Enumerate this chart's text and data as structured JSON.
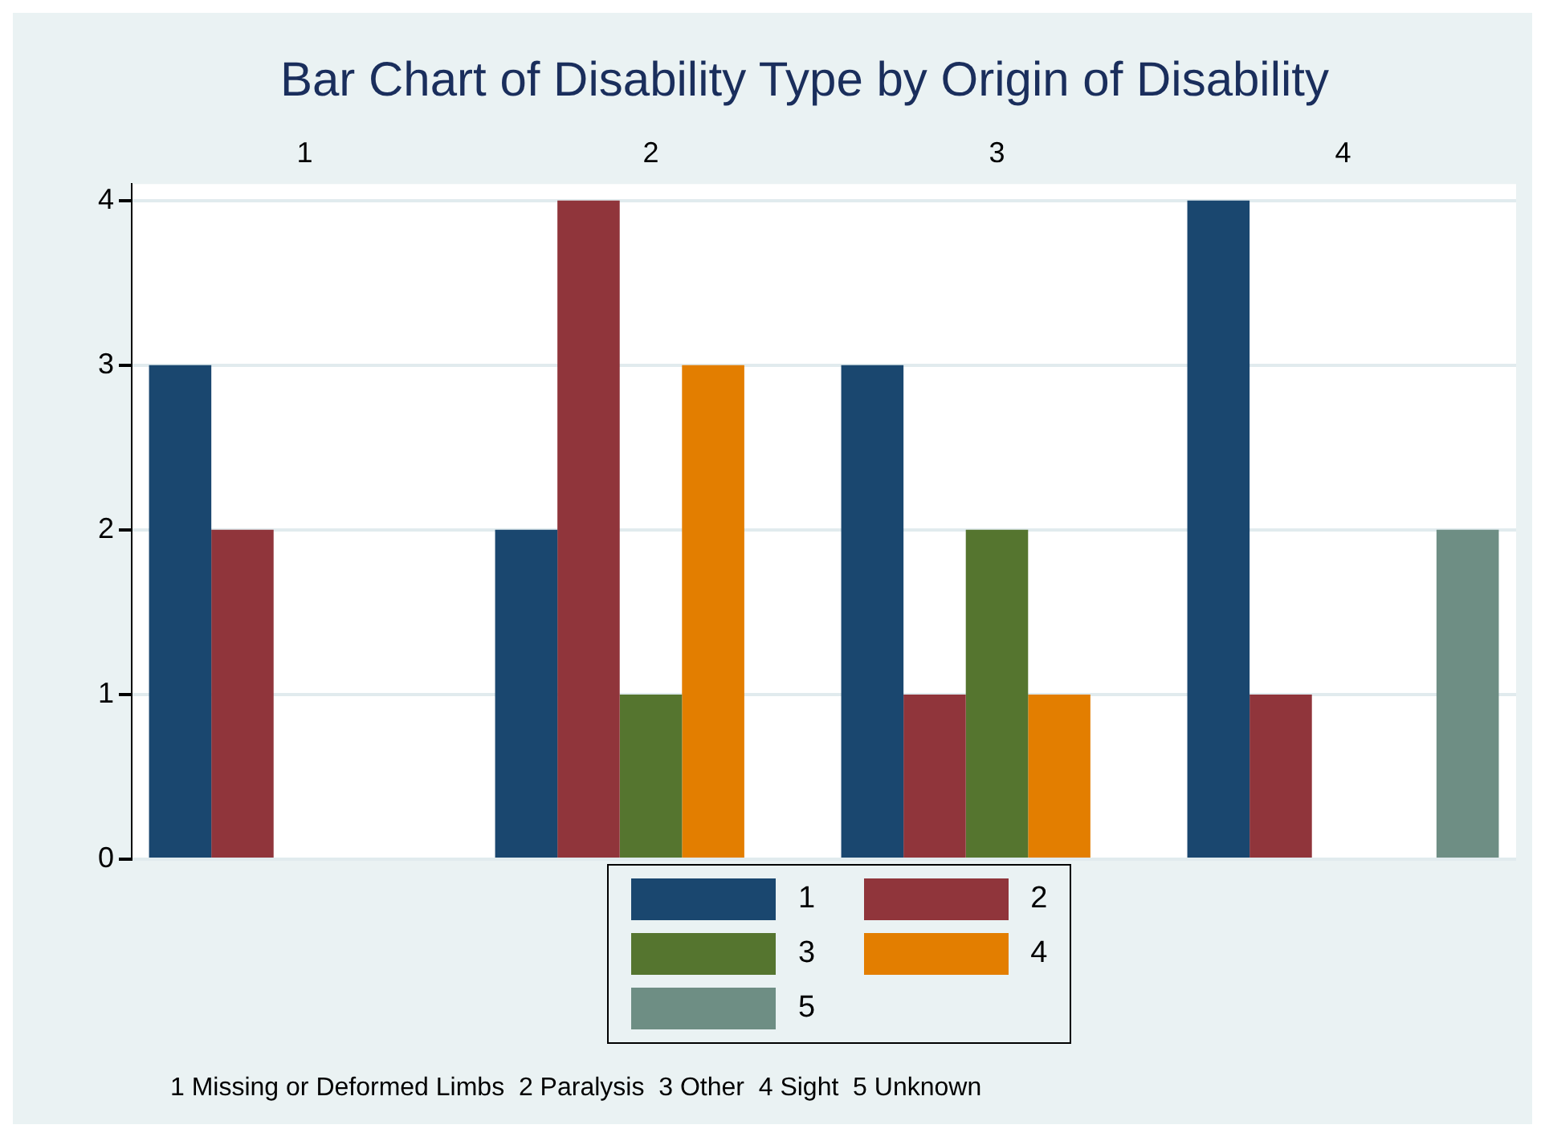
{
  "chart_data": {
    "type": "bar",
    "title": "Bar Chart of Disability Type by Origin of Disability",
    "categories": [
      "1",
      "2",
      "3",
      "4"
    ],
    "series": [
      {
        "name": "1",
        "color": "#1a476f",
        "values": [
          3,
          2,
          3,
          4
        ]
      },
      {
        "name": "2",
        "color": "#90353b",
        "values": [
          2,
          4,
          1,
          1
        ]
      },
      {
        "name": "3",
        "color": "#55752f",
        "values": [
          0,
          1,
          2,
          0
        ]
      },
      {
        "name": "4",
        "color": "#e37e00",
        "values": [
          0,
          3,
          1,
          0
        ]
      },
      {
        "name": "5",
        "color": "#6e8e84",
        "values": [
          0,
          0,
          0,
          2
        ]
      }
    ],
    "ylim": [
      0,
      4.1
    ],
    "yticks": [
      0,
      1,
      2,
      3,
      4
    ],
    "grid": "y",
    "legend": "bottom",
    "annotations": [
      "1 Missing or Deformed Limbs  2 Paralysis  3 Other  4 Sight  5 Unknown"
    ]
  }
}
